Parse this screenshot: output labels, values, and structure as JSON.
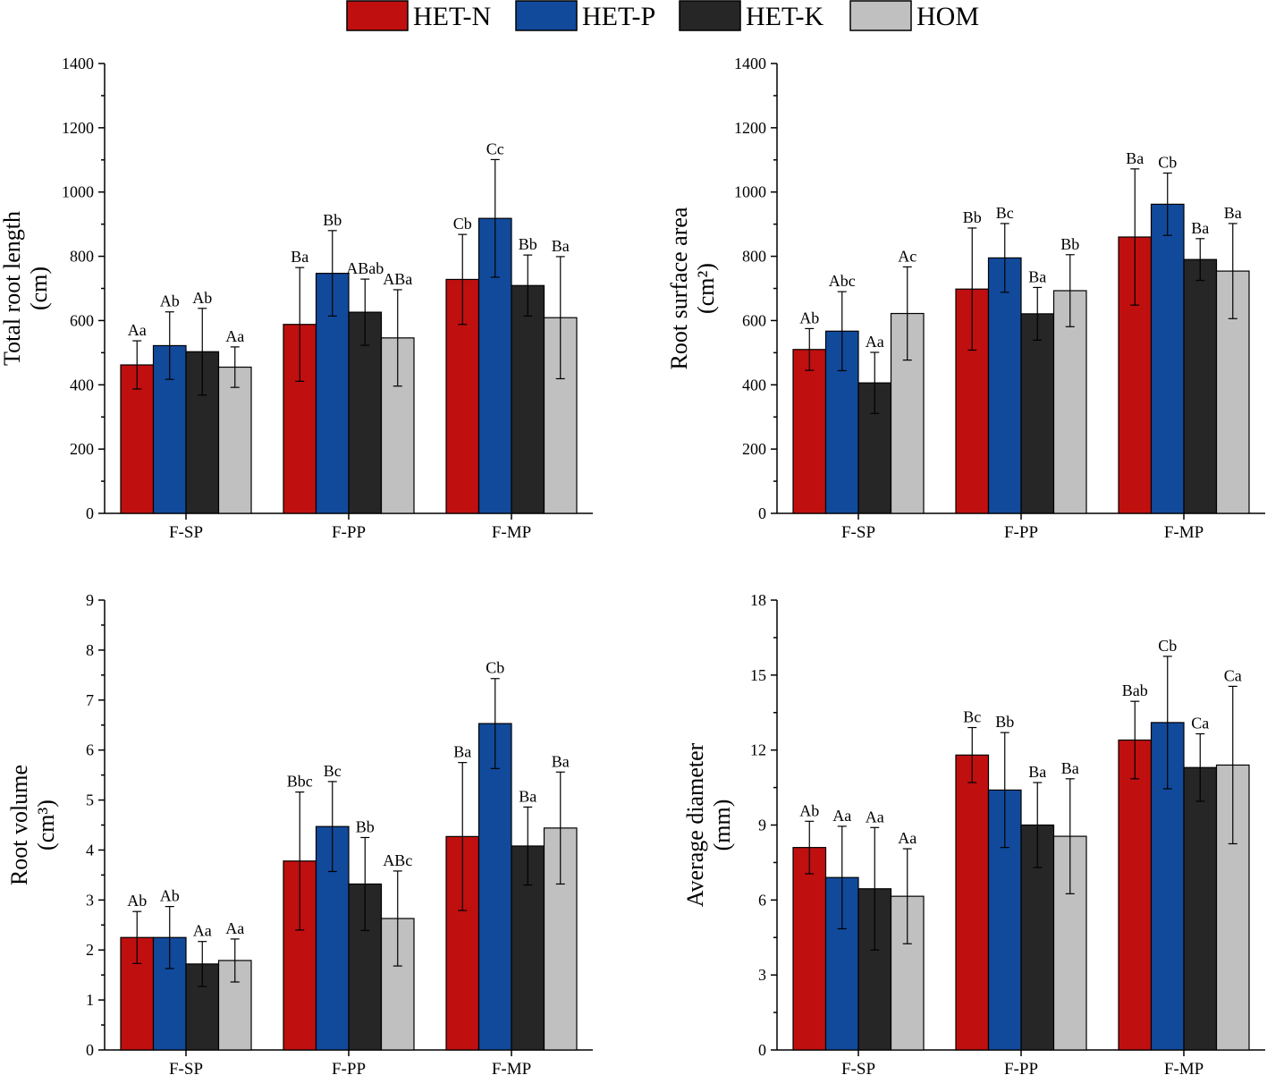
{
  "legend": {
    "series": [
      {
        "name": "HET-N",
        "color": "#c00f0f"
      },
      {
        "name": "HET-P",
        "color": "#114a9b"
      },
      {
        "name": "HET-K",
        "color": "#262626"
      },
      {
        "name": "HOM",
        "color": "#c0c0c0"
      }
    ]
  },
  "chart_data": [
    {
      "type": "bar",
      "title": "",
      "ylabel": [
        "Total root length",
        "(cm)"
      ],
      "xlabel": "",
      "categories": [
        "F-SP",
        "F-PP",
        "F-MP"
      ],
      "ylim": [
        0,
        1400
      ],
      "yticks": [
        0,
        200,
        400,
        600,
        800,
        1000,
        1200,
        1400
      ],
      "series": [
        {
          "name": "HET-N",
          "values": [
            462,
            588,
            728
          ],
          "errors": [
            75,
            177,
            140
          ],
          "labels": [
            "Aa",
            "Ba",
            "Cb"
          ]
        },
        {
          "name": "HET-P",
          "values": [
            522,
            747,
            918
          ],
          "errors": [
            105,
            133,
            183
          ],
          "labels": [
            "Ab",
            "Bb",
            "Cc"
          ]
        },
        {
          "name": "HET-K",
          "values": [
            503,
            626,
            709
          ],
          "errors": [
            135,
            103,
            95
          ],
          "labels": [
            "Ab",
            "ABab",
            "Bb"
          ]
        },
        {
          "name": "HOM",
          "values": [
            455,
            546,
            609
          ],
          "errors": [
            63,
            150,
            190
          ],
          "labels": [
            "Aa",
            "ABa",
            "Ba"
          ]
        }
      ]
    },
    {
      "type": "bar",
      "title": "",
      "ylabel": [
        "Root surface area",
        "(cm²)"
      ],
      "xlabel": "",
      "categories": [
        "F-SP",
        "F-PP",
        "F-MP"
      ],
      "ylim": [
        0,
        1400
      ],
      "yticks": [
        0,
        200,
        400,
        600,
        800,
        1000,
        1200,
        1400
      ],
      "series": [
        {
          "name": "HET-N",
          "values": [
            510,
            698,
            860
          ],
          "errors": [
            65,
            190,
            212
          ],
          "labels": [
            "Ab",
            "Bb",
            "Ba"
          ]
        },
        {
          "name": "HET-P",
          "values": [
            567,
            795,
            962
          ],
          "errors": [
            123,
            107,
            97
          ],
          "labels": [
            "Abc",
            "Bc",
            "Cb"
          ]
        },
        {
          "name": "HET-K",
          "values": [
            406,
            621,
            790
          ],
          "errors": [
            95,
            82,
            65
          ],
          "labels": [
            "Aa",
            "Ba",
            "Ba"
          ]
        },
        {
          "name": "HOM",
          "values": [
            622,
            693,
            754
          ],
          "errors": [
            145,
            112,
            148
          ],
          "labels": [
            "Ac",
            "Bb",
            "Ba"
          ]
        }
      ]
    },
    {
      "type": "bar",
      "title": "",
      "ylabel": [
        "Root volume",
        "(cm³)"
      ],
      "xlabel": "",
      "categories": [
        "F-SP",
        "F-PP",
        "F-MP"
      ],
      "ylim": [
        0,
        9
      ],
      "yticks": [
        0,
        1,
        2,
        3,
        4,
        5,
        6,
        7,
        8,
        9
      ],
      "series": [
        {
          "name": "HET-N",
          "values": [
            2.25,
            3.78,
            4.27
          ],
          "errors": [
            0.52,
            1.38,
            1.48
          ],
          "labels": [
            "Ab",
            "Bbc",
            "Ba"
          ]
        },
        {
          "name": "HET-P",
          "values": [
            2.25,
            4.47,
            6.53
          ],
          "errors": [
            0.62,
            0.9,
            0.9
          ],
          "labels": [
            "Ab",
            "Bc",
            "Cb"
          ]
        },
        {
          "name": "HET-K",
          "values": [
            1.72,
            3.32,
            4.08
          ],
          "errors": [
            0.45,
            0.93,
            0.78
          ],
          "labels": [
            "Aa",
            "Bb",
            "Ba"
          ]
        },
        {
          "name": "HOM",
          "values": [
            1.79,
            2.63,
            4.44
          ],
          "errors": [
            0.43,
            0.95,
            1.12
          ],
          "labels": [
            "Aa",
            "ABc",
            "Ba"
          ]
        }
      ]
    },
    {
      "type": "bar",
      "title": "",
      "ylabel": [
        "Average diameter",
        "(mm)"
      ],
      "xlabel": "",
      "categories": [
        "F-SP",
        "F-PP",
        "F-MP"
      ],
      "ylim": [
        0,
        18
      ],
      "yticks": [
        0,
        3,
        6,
        9,
        12,
        15,
        18
      ],
      "series": [
        {
          "name": "HET-N",
          "values": [
            8.1,
            11.8,
            12.4
          ],
          "errors": [
            1.05,
            1.1,
            1.55
          ],
          "labels": [
            "Ab",
            "Bc",
            "Bab"
          ]
        },
        {
          "name": "HET-P",
          "values": [
            6.9,
            10.4,
            13.1
          ],
          "errors": [
            2.05,
            2.3,
            2.65
          ],
          "labels": [
            "Aa",
            "Bb",
            "Cb"
          ]
        },
        {
          "name": "HET-K",
          "values": [
            6.45,
            9.0,
            11.3
          ],
          "errors": [
            2.45,
            1.7,
            1.35
          ],
          "labels": [
            "Aa",
            "Ba",
            "Ca"
          ]
        },
        {
          "name": "HOM",
          "values": [
            6.15,
            8.55,
            11.4
          ],
          "errors": [
            1.9,
            2.3,
            3.15
          ],
          "labels": [
            "Aa",
            "Ba",
            "Ca"
          ]
        }
      ]
    }
  ]
}
